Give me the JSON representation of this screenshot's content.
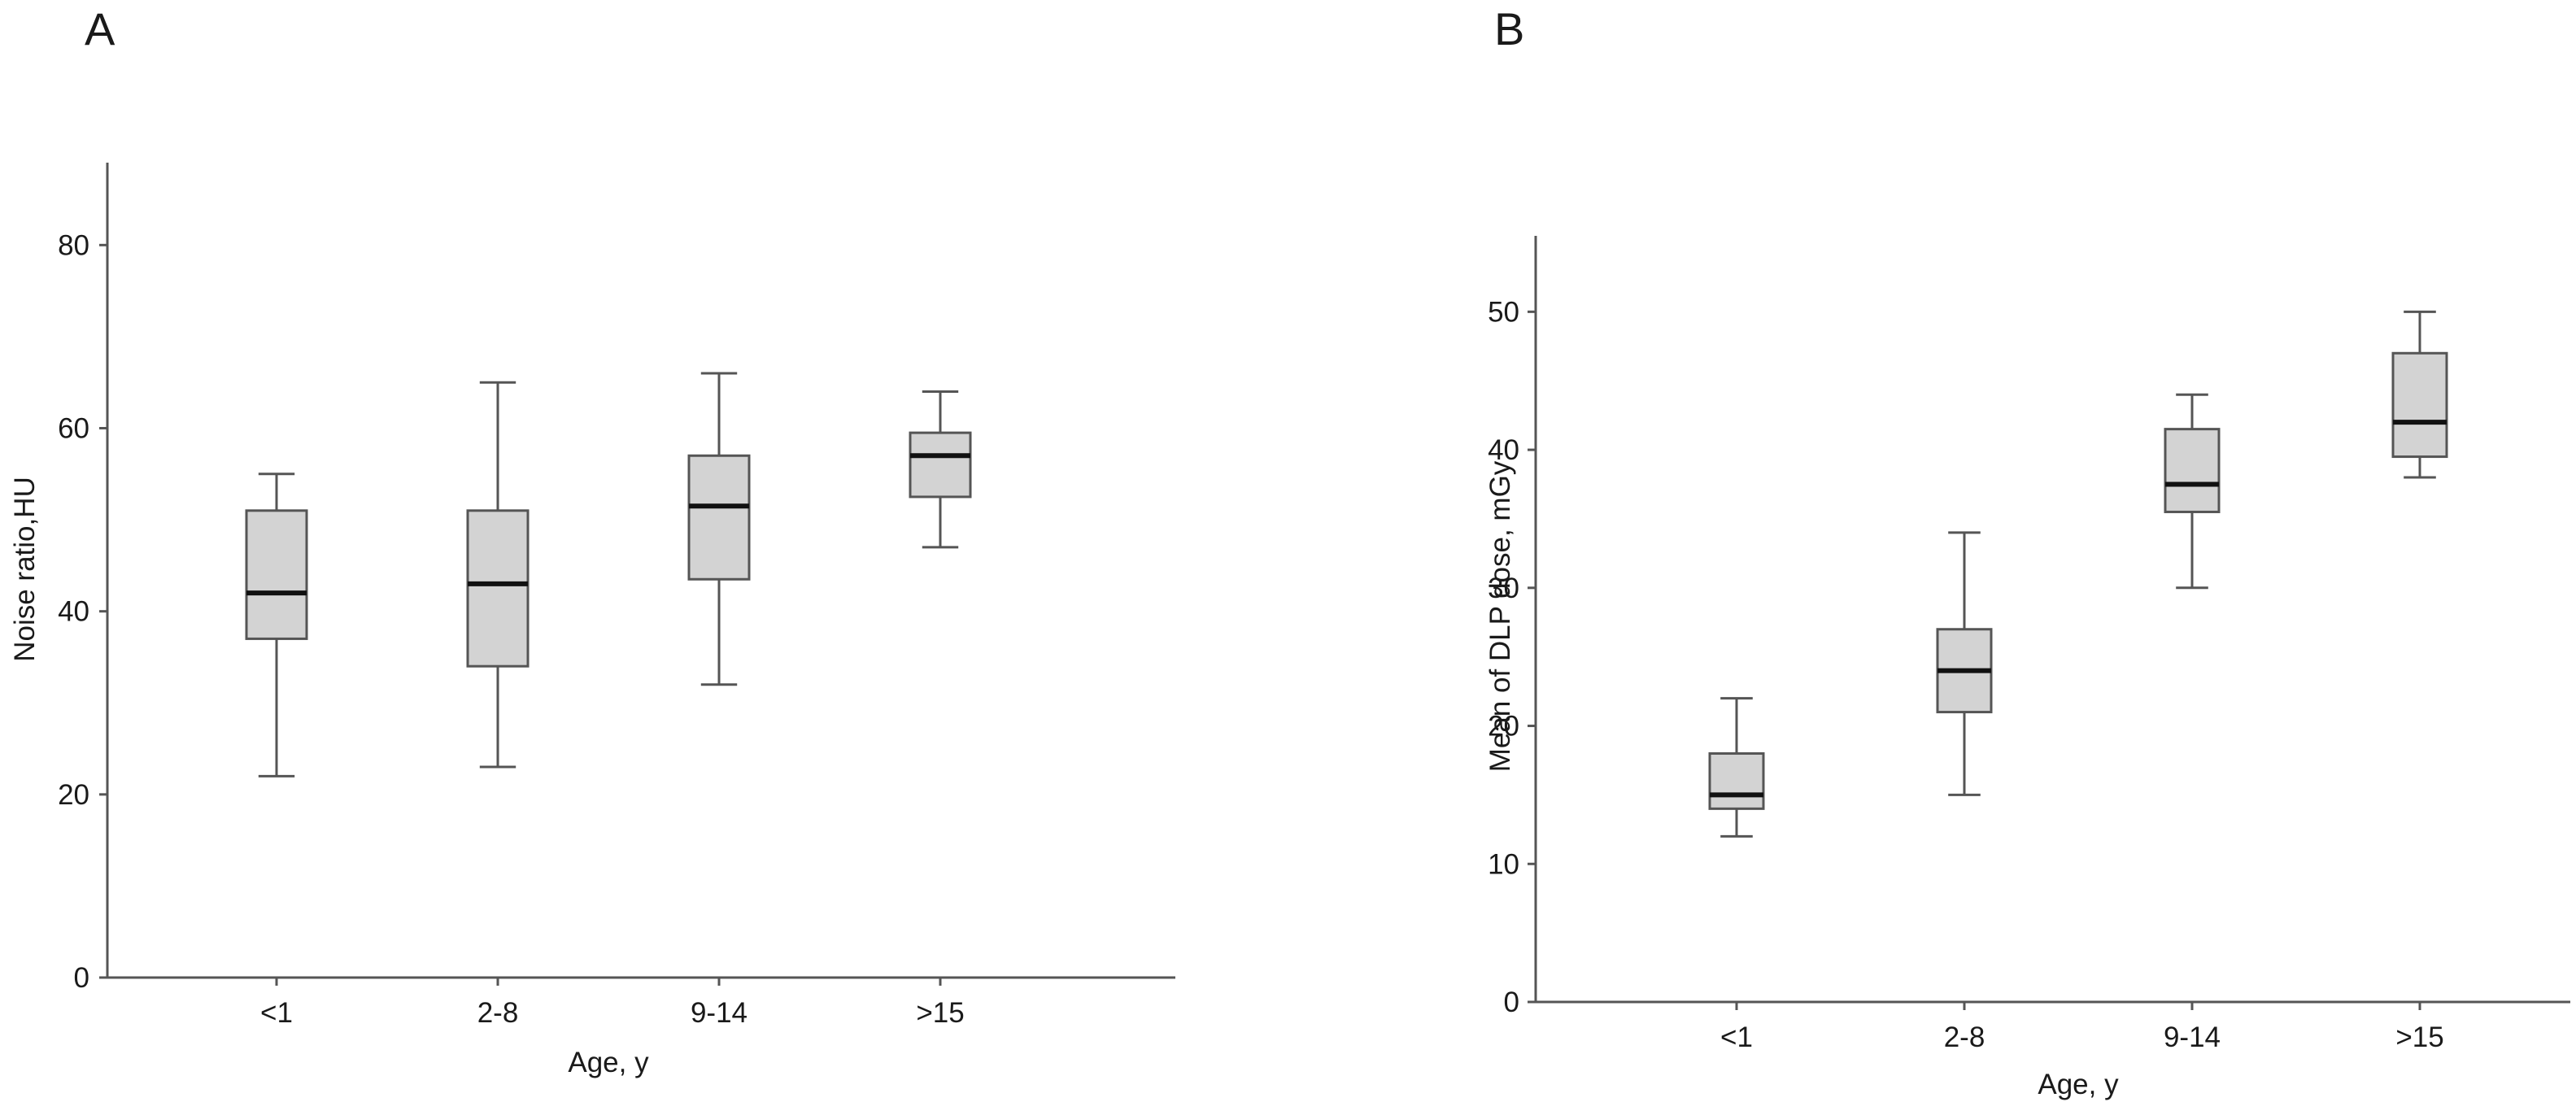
{
  "chart_data": [
    {
      "type": "boxplot",
      "panel_label": "A",
      "xlabel": "Age, y",
      "ylabel": "Noise ratio,HU",
      "categories": [
        "<1",
        "2-8",
        "9-14",
        ">15"
      ],
      "ylim": [
        0,
        89
      ],
      "yticks": [
        0,
        20,
        40,
        60,
        80
      ],
      "boxes": [
        {
          "category": "<1",
          "min": 22,
          "q1": 37,
          "median": 42,
          "q3": 51,
          "max": 55
        },
        {
          "category": "2-8",
          "min": 23,
          "q1": 34,
          "median": 43,
          "q3": 51,
          "max": 65
        },
        {
          "category": "9-14",
          "min": 32,
          "q1": 43.5,
          "median": 51.5,
          "q3": 57,
          "max": 66
        },
        {
          "category": ">15",
          "min": 47,
          "q1": 52.5,
          "median": 57,
          "q3": 59.5,
          "max": 64
        }
      ],
      "grid": false,
      "box_color": "#d3d3d3",
      "line_color": "#555555",
      "median_color": "#111111"
    },
    {
      "type": "boxplot",
      "panel_label": "B",
      "xlabel": "Age, y",
      "ylabel": "Mean of DLP dose, mGy",
      "categories": [
        "<1",
        "2-8",
        "9-14",
        ">15"
      ],
      "ylim": [
        0,
        55.5
      ],
      "yticks": [
        0,
        10,
        20,
        30,
        40,
        50
      ],
      "boxes": [
        {
          "category": "<1",
          "min": 12,
          "q1": 14,
          "median": 15,
          "q3": 18,
          "max": 22
        },
        {
          "category": "2-8",
          "min": 15,
          "q1": 21,
          "median": 24,
          "q3": 27,
          "max": 34
        },
        {
          "category": "9-14",
          "min": 30,
          "q1": 35.5,
          "median": 37.5,
          "q3": 41.5,
          "max": 44
        },
        {
          "category": ">15",
          "min": 38,
          "q1": 39.5,
          "median": 42,
          "q3": 47,
          "max": 50
        }
      ],
      "grid": false,
      "box_color": "#d3d3d3",
      "line_color": "#555555",
      "median_color": "#111111"
    }
  ]
}
